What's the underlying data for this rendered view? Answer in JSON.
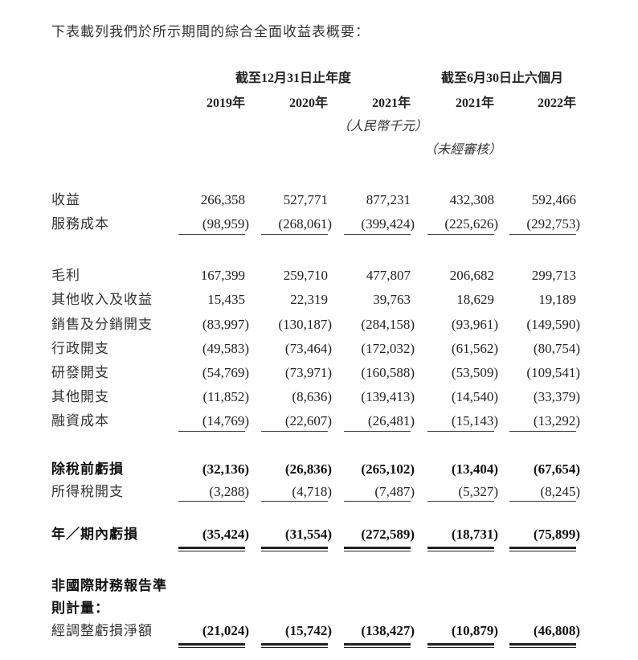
{
  "intro": "下表載列我們於所示期間的綜合全面收益表概要：",
  "header": {
    "group_year": "截至12月31日止年度",
    "group_half": "截至6月30日止六個月",
    "columns": [
      "2019年",
      "2020年",
      "2021年",
      "2021年",
      "2022年"
    ],
    "currency_note": "（人民幣千元）",
    "unaudited_note": "（未經審核）"
  },
  "rows": [
    {
      "label": "收益",
      "values": [
        "266,358",
        "527,771",
        "877,231",
        "432,308",
        "592,466"
      ]
    },
    {
      "label": "服務成本",
      "values": [
        "(98,959)",
        "(268,061)",
        "(399,424)",
        "(225,626)",
        "(292,753)"
      ]
    },
    {
      "label": "毛利",
      "values": [
        "167,399",
        "259,710",
        "477,807",
        "206,682",
        "299,713"
      ]
    },
    {
      "label": "其他收入及收益",
      "values": [
        "15,435",
        "22,319",
        "39,763",
        "18,629",
        "19,189"
      ]
    },
    {
      "label": "銷售及分銷開支",
      "values": [
        "(83,997)",
        "(130,187)",
        "(284,158)",
        "(93,961)",
        "(149,590)"
      ]
    },
    {
      "label": "行政開支",
      "values": [
        "(49,583)",
        "(73,464)",
        "(172,032)",
        "(61,562)",
        "(80,754)"
      ]
    },
    {
      "label": "研發開支",
      "values": [
        "(54,769)",
        "(73,971)",
        "(160,588)",
        "(53,509)",
        "(109,541)"
      ]
    },
    {
      "label": "其他開支",
      "values": [
        "(11,852)",
        "(8,636)",
        "(139,413)",
        "(14,540)",
        "(33,379)"
      ]
    },
    {
      "label": "融資成本",
      "values": [
        "(14,769)",
        "(22,607)",
        "(26,481)",
        "(15,143)",
        "(13,292)"
      ]
    },
    {
      "label": "除稅前虧損",
      "values": [
        "(32,136)",
        "(26,836)",
        "(265,102)",
        "(13,404)",
        "(67,654)"
      ],
      "bold": true
    },
    {
      "label": "所得稅開支",
      "values": [
        "(3,288)",
        "(4,718)",
        "(7,487)",
        "(5,327)",
        "(8,245)"
      ]
    },
    {
      "label": "年／期內虧損",
      "values": [
        "(35,424)",
        "(31,554)",
        "(272,589)",
        "(18,731)",
        "(75,899)"
      ],
      "bold": true
    },
    {
      "label": "非國際財務報告準",
      "values": null,
      "bold": true
    },
    {
      "label": "則計量：",
      "values": null,
      "bold": true
    },
    {
      "label": "經調整虧損淨額",
      "values": [
        "(21,024)",
        "(15,742)",
        "(138,427)",
        "(10,879)",
        "(46,808)"
      ],
      "bold_values": true
    }
  ]
}
